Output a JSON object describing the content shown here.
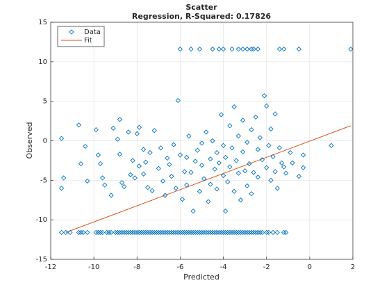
{
  "chart_data": {
    "type": "scatter",
    "title": "Scatter",
    "subtitle": "Regression, R-Squared: 0.17826",
    "xlabel": "Predicted",
    "ylabel": "Observed",
    "xlim": [
      -12,
      2
    ],
    "ylim": [
      -15,
      15
    ],
    "xticks": [
      -12,
      -10,
      -8,
      -6,
      -4,
      -2,
      0,
      2
    ],
    "yticks": [
      -15,
      -10,
      -5,
      0,
      5,
      10,
      15
    ],
    "grid": true,
    "legend_position": "top-left",
    "series": [
      {
        "name": "Data",
        "marker": "diamond",
        "color": "#0072BD",
        "points": [
          [
            -11.5,
            0.3
          ],
          [
            -11.4,
            -4.7
          ],
          [
            -11.5,
            -6.0
          ],
          [
            -10.7,
            2.0
          ],
          [
            -10.6,
            -2.9
          ],
          [
            -10.4,
            -0.7
          ],
          [
            -10.3,
            -5.1
          ],
          [
            -9.9,
            1.4
          ],
          [
            -9.8,
            -1.8
          ],
          [
            -9.7,
            -2.9
          ],
          [
            -9.6,
            -4.7
          ],
          [
            -9.5,
            -5.6
          ],
          [
            -9.2,
            -6.9
          ],
          [
            -9.1,
            1.6
          ],
          [
            -8.9,
            0.2
          ],
          [
            -8.8,
            -1.7
          ],
          [
            -8.8,
            2.7
          ],
          [
            -8.7,
            -5.3
          ],
          [
            -8.6,
            -5.8
          ],
          [
            -8.4,
            1.1
          ],
          [
            -8.3,
            -4.3
          ],
          [
            -8.2,
            -2.5
          ],
          [
            -8.1,
            -4.7
          ],
          [
            -8.0,
            0.9
          ],
          [
            -7.9,
            1.7
          ],
          [
            -7.9,
            -3.2
          ],
          [
            -7.7,
            -1.1
          ],
          [
            -7.7,
            -4.2
          ],
          [
            -7.6,
            -2.7
          ],
          [
            -7.5,
            -5.9
          ],
          [
            -7.4,
            -1.5
          ],
          [
            -7.3,
            -6.3
          ],
          [
            -7.2,
            1.3
          ],
          [
            -7.0,
            -3.5
          ],
          [
            -6.9,
            -0.9
          ],
          [
            -6.8,
            -5.1
          ],
          [
            -6.7,
            -6.9
          ],
          [
            -6.6,
            -2.2
          ],
          [
            -6.5,
            -3.0
          ],
          [
            -6.4,
            -4.5
          ],
          [
            -6.3,
            -0.5
          ],
          [
            -6.2,
            -6.0
          ],
          [
            -6.1,
            5.1
          ],
          [
            -6.0,
            -1.8
          ],
          [
            -5.9,
            -7.4
          ],
          [
            -5.8,
            -3.9
          ],
          [
            -5.7,
            -2.1
          ],
          [
            -5.7,
            -5.6
          ],
          [
            -5.6,
            0.6
          ],
          [
            -5.5,
            -4.0
          ],
          [
            -5.4,
            -8.9
          ],
          [
            -5.3,
            -2.6
          ],
          [
            -5.2,
            -1.2
          ],
          [
            -5.1,
            -6.4
          ],
          [
            -5.0,
            -0.3
          ],
          [
            -5.0,
            -3.1
          ],
          [
            -4.9,
            -4.8
          ],
          [
            -4.8,
            1.1
          ],
          [
            -4.7,
            -7.7
          ],
          [
            -4.6,
            -2.3
          ],
          [
            -4.6,
            -5.5
          ],
          [
            -4.5,
            0.0
          ],
          [
            -4.4,
            -3.6
          ],
          [
            -4.3,
            -1.5
          ],
          [
            -4.3,
            -6.1
          ],
          [
            -4.2,
            -2.8
          ],
          [
            -4.1,
            3.3
          ],
          [
            -4.0,
            -4.4
          ],
          [
            -4.0,
            -0.6
          ],
          [
            -3.9,
            -8.9
          ],
          [
            -3.9,
            -2.1
          ],
          [
            -3.8,
            -5.2
          ],
          [
            -3.7,
            1.9
          ],
          [
            -3.7,
            -3.3
          ],
          [
            -3.6,
            -0.9
          ],
          [
            -3.5,
            -6.4
          ],
          [
            -3.5,
            4.3
          ],
          [
            -3.4,
            -2.5
          ],
          [
            -3.3,
            -4.1
          ],
          [
            -3.3,
            0.6
          ],
          [
            -3.2,
            -7.5
          ],
          [
            -3.1,
            -1.4
          ],
          [
            -3.1,
            2.6
          ],
          [
            -3.0,
            -3.8
          ],
          [
            -2.9,
            -5.7
          ],
          [
            -2.9,
            -0.2
          ],
          [
            -2.8,
            -2.9
          ],
          [
            -2.7,
            1.4
          ],
          [
            -2.7,
            -6.7
          ],
          [
            -2.6,
            -4.0
          ],
          [
            -2.5,
            3.0
          ],
          [
            -2.4,
            -1.1
          ],
          [
            -2.4,
            -4.6
          ],
          [
            -2.3,
            0.4
          ],
          [
            -2.2,
            -2.4
          ],
          [
            -2.1,
            5.7
          ],
          [
            -2.0,
            -3.4
          ],
          [
            -2.0,
            4.4
          ],
          [
            -1.9,
            -0.6
          ],
          [
            -1.8,
            -5.0
          ],
          [
            -1.8,
            1.5
          ],
          [
            -1.7,
            -2.0
          ],
          [
            -1.6,
            3.4
          ],
          [
            -1.6,
            -3.9
          ],
          [
            -1.5,
            -6.0
          ],
          [
            -1.4,
            -0.9
          ],
          [
            -1.3,
            -2.8
          ],
          [
            -1.2,
            -3.3
          ],
          [
            -1.1,
            -4.1
          ],
          [
            -0.9,
            -1.5
          ],
          [
            -0.8,
            -2.8
          ],
          [
            -0.5,
            -4.5
          ],
          [
            -0.3,
            -1.8
          ],
          [
            -0.3,
            -3.4
          ],
          [
            1.0,
            -0.6
          ],
          [
            -6.0,
            11.6
          ],
          [
            -5.5,
            11.6
          ],
          [
            -5.1,
            11.6
          ],
          [
            -4.5,
            11.6
          ],
          [
            -4.2,
            11.6
          ],
          [
            -4.0,
            11.6
          ],
          [
            -3.6,
            11.6
          ],
          [
            -3.3,
            11.6
          ],
          [
            -3.1,
            11.6
          ],
          [
            -2.9,
            11.6
          ],
          [
            -2.7,
            11.6
          ],
          [
            -2.6,
            11.6
          ],
          [
            -2.4,
            11.6
          ],
          [
            -1.4,
            11.6
          ],
          [
            -1.2,
            11.6
          ],
          [
            -0.5,
            11.6
          ],
          [
            1.9,
            11.6
          ],
          [
            -11.5,
            -11.6
          ],
          [
            -11.3,
            -11.6
          ],
          [
            -11.1,
            -11.6
          ],
          [
            -10.7,
            -11.6
          ],
          [
            -10.6,
            -11.6
          ],
          [
            -10.5,
            -11.6
          ],
          [
            -10.3,
            -11.6
          ],
          [
            -9.9,
            -11.6
          ],
          [
            -9.8,
            -11.6
          ],
          [
            -9.7,
            -11.6
          ],
          [
            -9.6,
            -11.6
          ],
          [
            -9.4,
            -11.6
          ],
          [
            -9.3,
            -11.6
          ],
          [
            -9.2,
            -11.6
          ],
          [
            -9.0,
            -11.6
          ],
          [
            -8.9,
            -11.6
          ],
          [
            -8.8,
            -11.6
          ],
          [
            -8.7,
            -11.6
          ],
          [
            -8.6,
            -11.6
          ],
          [
            -8.5,
            -11.6
          ],
          [
            -8.4,
            -11.6
          ],
          [
            -8.3,
            -11.6
          ],
          [
            -8.2,
            -11.6
          ],
          [
            -8.1,
            -11.6
          ],
          [
            -8.0,
            -11.6
          ],
          [
            -7.9,
            -11.6
          ],
          [
            -7.8,
            -11.6
          ],
          [
            -7.7,
            -11.6
          ],
          [
            -7.6,
            -11.6
          ],
          [
            -7.5,
            -11.6
          ],
          [
            -7.4,
            -11.6
          ],
          [
            -7.3,
            -11.6
          ],
          [
            -7.2,
            -11.6
          ],
          [
            -7.1,
            -11.6
          ],
          [
            -7.0,
            -11.6
          ],
          [
            -6.9,
            -11.6
          ],
          [
            -6.8,
            -11.6
          ],
          [
            -6.7,
            -11.6
          ],
          [
            -6.6,
            -11.6
          ],
          [
            -6.5,
            -11.6
          ],
          [
            -6.4,
            -11.6
          ],
          [
            -6.3,
            -11.6
          ],
          [
            -6.2,
            -11.6
          ],
          [
            -6.1,
            -11.6
          ],
          [
            -6.0,
            -11.6
          ],
          [
            -5.9,
            -11.6
          ],
          [
            -5.8,
            -11.6
          ],
          [
            -5.7,
            -11.6
          ],
          [
            -5.6,
            -11.6
          ],
          [
            -5.5,
            -11.6
          ],
          [
            -5.4,
            -11.6
          ],
          [
            -5.3,
            -11.6
          ],
          [
            -5.2,
            -11.6
          ],
          [
            -5.1,
            -11.6
          ],
          [
            -5.0,
            -11.6
          ],
          [
            -4.9,
            -11.6
          ],
          [
            -4.8,
            -11.6
          ],
          [
            -4.7,
            -11.6
          ],
          [
            -4.6,
            -11.6
          ],
          [
            -4.5,
            -11.6
          ],
          [
            -4.4,
            -11.6
          ],
          [
            -4.3,
            -11.6
          ],
          [
            -4.2,
            -11.6
          ],
          [
            -4.1,
            -11.6
          ],
          [
            -4.0,
            -11.6
          ],
          [
            -3.9,
            -11.6
          ],
          [
            -3.8,
            -11.6
          ],
          [
            -3.7,
            -11.6
          ],
          [
            -3.6,
            -11.6
          ],
          [
            -3.5,
            -11.6
          ],
          [
            -3.4,
            -11.6
          ],
          [
            -3.3,
            -11.6
          ],
          [
            -3.2,
            -11.6
          ],
          [
            -3.1,
            -11.6
          ],
          [
            -3.0,
            -11.6
          ],
          [
            -2.9,
            -11.6
          ],
          [
            -2.8,
            -11.6
          ],
          [
            -2.7,
            -11.6
          ],
          [
            -2.6,
            -11.6
          ],
          [
            -2.5,
            -11.6
          ],
          [
            -2.4,
            -11.6
          ],
          [
            -2.3,
            -11.6
          ],
          [
            -2.2,
            -11.6
          ],
          [
            -2.0,
            -11.6
          ],
          [
            -1.9,
            -11.6
          ],
          [
            -1.7,
            -11.6
          ],
          [
            -1.5,
            -11.6
          ],
          [
            -1.2,
            -11.6
          ],
          [
            -1.1,
            -11.6
          ]
        ]
      },
      {
        "name": "Fit",
        "type": "line",
        "color": "#D95319",
        "points": [
          [
            -11.3,
            -11.6
          ],
          [
            1.9,
            1.9
          ]
        ]
      }
    ]
  }
}
